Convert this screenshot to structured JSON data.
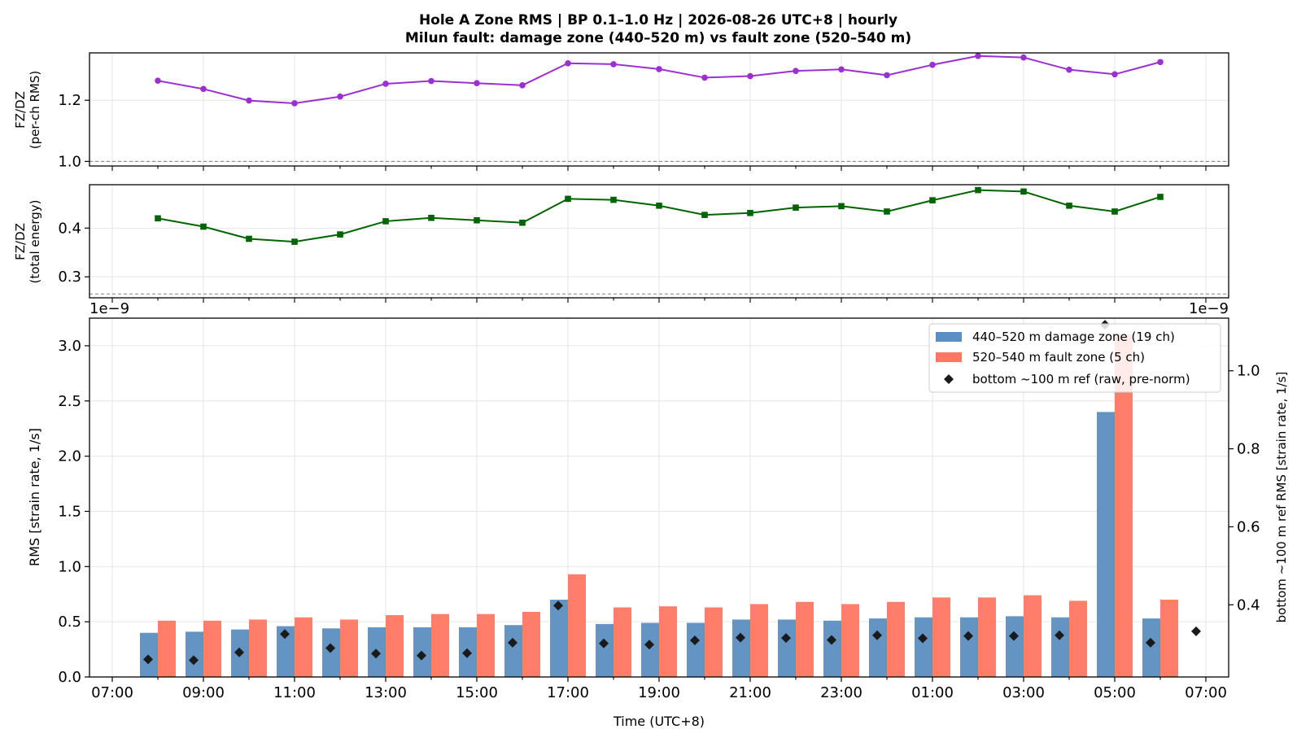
{
  "title": {
    "line1": "Hole A Zone RMS  |  BP 0.1–1.0 Hz  |  2026-08-26 UTC+8  |  hourly",
    "line2": "Milun fault: damage zone (440–520 m) vs fault zone (520–540 m)"
  },
  "colors": {
    "ratio_rms": "#9b30d0",
    "ratio_energy": "#006400",
    "damage_zone": "#5b8ec1",
    "fault_zone": "#ff7761",
    "bottom_ref": "#1a1a1a"
  },
  "chart_data": [
    {
      "type": "line",
      "name": "fz-dz-rms-ratio",
      "ylabel": [
        "FZ/DZ",
        "(per-ch RMS)"
      ],
      "ylim": [
        0.985,
        1.355
      ],
      "yticks": [
        "1.0",
        "1.2"
      ],
      "reference_line": 1.0,
      "grid": true,
      "x_hours": [
        8,
        9,
        10,
        11,
        12,
        13,
        14,
        15,
        16,
        17,
        18,
        19,
        20,
        21,
        22,
        23,
        24,
        25,
        26,
        27,
        28,
        29,
        30
      ],
      "values": [
        1.264,
        1.237,
        1.199,
        1.19,
        1.212,
        1.254,
        1.263,
        1.256,
        1.249,
        1.321,
        1.318,
        1.302,
        1.274,
        1.279,
        1.296,
        1.301,
        1.282,
        1.316,
        1.345,
        1.34,
        1.3,
        1.285,
        1.325
      ]
    },
    {
      "type": "line",
      "name": "fz-dz-energy-ratio",
      "ylabel": [
        "FZ/DZ",
        "(total energy)"
      ],
      "ylim": [
        0.257,
        0.489
      ],
      "yticks": [
        "0.3",
        "0.4"
      ],
      "reference_line": 0.265,
      "grid": true,
      "x_hours": [
        8,
        9,
        10,
        11,
        12,
        13,
        14,
        15,
        16,
        17,
        18,
        19,
        20,
        21,
        22,
        23,
        24,
        25,
        26,
        27,
        28,
        29,
        30
      ],
      "values": [
        0.42,
        0.403,
        0.378,
        0.372,
        0.387,
        0.414,
        0.421,
        0.416,
        0.411,
        0.46,
        0.458,
        0.446,
        0.427,
        0.431,
        0.442,
        0.445,
        0.434,
        0.457,
        0.478,
        0.475,
        0.446,
        0.434,
        0.464
      ]
    },
    {
      "type": "bar",
      "name": "zone-rms",
      "ylabel": "RMS  [strain rate, 1/s]",
      "y2label": "bottom ~100 m ref RMS  [strain rate, 1/s]",
      "xlabel": "Time (UTC+8)",
      "offset_label_left": "1e−9",
      "offset_label_right": "1e−9",
      "ylim": [
        0,
        3.25
      ],
      "y2lim": [
        0.215,
        1.135
      ],
      "yticks": [
        "0.0",
        "0.5",
        "1.0",
        "1.5",
        "2.0",
        "2.5",
        "3.0"
      ],
      "y2ticks": [
        "0.4",
        "0.6",
        "0.8",
        "1.0"
      ],
      "xlim_hours": [
        6.5,
        31.5
      ],
      "xticks": [
        "07:00",
        "09:00",
        "11:00",
        "13:00",
        "15:00",
        "17:00",
        "19:00",
        "21:00",
        "23:00",
        "01:00",
        "03:00",
        "05:00",
        "07:00"
      ],
      "grid": true,
      "legend_position": "top-right",
      "x_hours": [
        8,
        9,
        10,
        11,
        12,
        13,
        14,
        15,
        16,
        17,
        18,
        19,
        20,
        21,
        22,
        23,
        24,
        25,
        26,
        27,
        28,
        29,
        30
      ],
      "series": [
        {
          "name": "440–520 m  damage zone (19 ch)",
          "values": [
            0.4,
            0.41,
            0.43,
            0.46,
            0.44,
            0.45,
            0.45,
            0.45,
            0.47,
            0.7,
            0.48,
            0.49,
            0.49,
            0.52,
            0.52,
            0.51,
            0.53,
            0.54,
            0.54,
            0.55,
            0.54,
            2.4,
            0.53
          ]
        },
        {
          "name": "520–540 m  fault zone (5 ch)",
          "values": [
            0.51,
            0.51,
            0.52,
            0.54,
            0.52,
            0.56,
            0.57,
            0.57,
            0.59,
            0.93,
            0.63,
            0.64,
            0.63,
            0.66,
            0.68,
            0.66,
            0.68,
            0.72,
            0.72,
            0.74,
            0.69,
            3.1,
            0.7
          ]
        },
        {
          "name": "bottom ~100 m ref (raw, pre-norm)",
          "axis": "right",
          "x_hours": [
            8,
            9,
            10,
            11,
            12,
            13,
            14,
            15,
            16,
            17,
            18,
            19,
            20,
            21,
            22,
            23,
            24,
            25,
            26,
            27,
            28,
            29,
            30,
            31
          ],
          "values": [
            0.26,
            0.258,
            0.278,
            0.325,
            0.289,
            0.275,
            0.27,
            0.276,
            0.303,
            0.398,
            0.301,
            0.298,
            0.309,
            0.316,
            0.315,
            0.31,
            0.322,
            0.314,
            0.32,
            0.32,
            0.322,
            1.118,
            0.303,
            0.332
          ]
        }
      ]
    }
  ]
}
